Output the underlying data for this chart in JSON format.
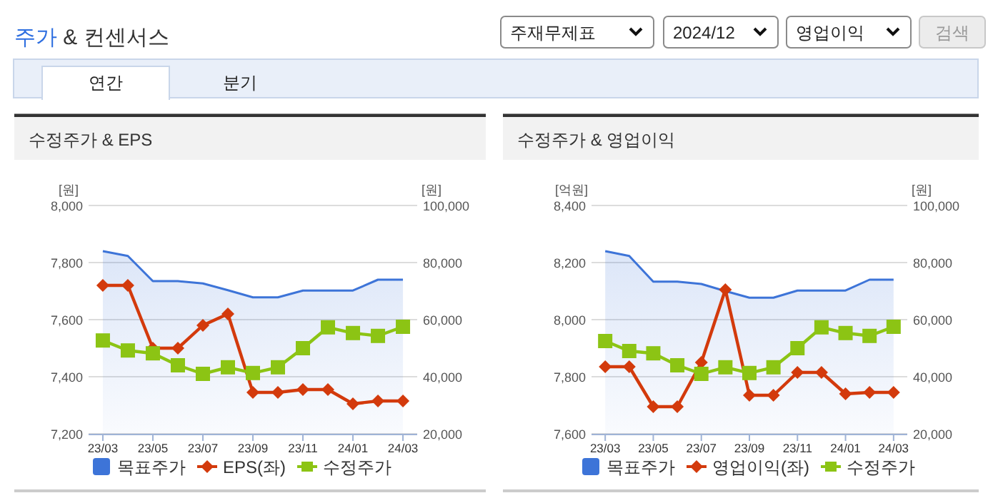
{
  "chart_data": [
    {
      "type": "other",
      "title": "주가 & 컨센서스",
      "annotations": [
        "주재무제표",
        "2024/12",
        "영업이익",
        "검색",
        "연간",
        "분기"
      ]
    },
    {
      "type": "line",
      "title": "수정주가 & EPS",
      "ylabel": "[원]",
      "y2label": "[원]",
      "categories": [
        "23/03",
        null,
        "23/05",
        null,
        "23/07",
        null,
        "23/09",
        null,
        "23/11",
        null,
        "24/01",
        null,
        "24/03"
      ],
      "series": [
        {
          "name": "목표주가",
          "type": "area",
          "axis": "y2",
          "color": "#3d74d8",
          "values": [
            84000,
            82300,
            73500,
            73500,
            72700,
            70300,
            67800,
            67800,
            70200,
            70200,
            70200,
            74000,
            74000
          ]
        },
        {
          "name": "EPS(좌)",
          "type": "line",
          "marker": "diamond",
          "color": "#d33a0c",
          "values": [
            7720,
            7720,
            7500,
            7500,
            7580,
            7620,
            7345,
            7345,
            7355,
            7355,
            7305,
            7315,
            7315
          ]
        },
        {
          "name": "수정주가",
          "type": "line",
          "axis": "y2",
          "marker": "square",
          "color": "#8cc414",
          "values": [
            52700,
            49200,
            48200,
            44000,
            41000,
            43300,
            41300,
            43300,
            50000,
            57300,
            55300,
            54300,
            57500
          ]
        }
      ],
      "ylim": [
        7200,
        8000
      ],
      "yticks": [
        {
          "value": 7200,
          "label": "7,200"
        },
        {
          "value": 7400,
          "label": "7,400"
        },
        {
          "value": 7600,
          "label": "7,600"
        },
        {
          "value": 7800,
          "label": "7,800"
        },
        {
          "value": 8000,
          "label": "8,000"
        }
      ],
      "y2lim": [
        20000,
        100000
      ],
      "y2ticks": [
        {
          "value": 20000,
          "label": "20,000"
        },
        {
          "value": 40000,
          "label": "40,000"
        },
        {
          "value": 60000,
          "label": "60,000"
        },
        {
          "value": 80000,
          "label": "80,000"
        },
        {
          "value": 100000,
          "label": "100,000"
        }
      ],
      "grid": "y",
      "legend": "bottom"
    },
    {
      "type": "line",
      "title": "수정주가 & 영업이익",
      "ylabel": "[억원]",
      "y2label": "[원]",
      "categories": [
        "23/03",
        null,
        "23/05",
        null,
        "23/07",
        null,
        "23/09",
        null,
        "23/11",
        null,
        "24/01",
        null,
        "24/03"
      ],
      "series": [
        {
          "name": "목표주가",
          "type": "area",
          "axis": "y2",
          "color": "#3d74d8",
          "values": [
            84000,
            82300,
            73300,
            73300,
            72500,
            70000,
            67700,
            67700,
            70200,
            70200,
            70200,
            74000,
            74000
          ]
        },
        {
          "name": "영업이익(좌)",
          "type": "line",
          "marker": "diamond",
          "color": "#d33a0c",
          "values": [
            7835,
            7835,
            7695,
            7695,
            7850,
            8105,
            7735,
            7735,
            7815,
            7815,
            7740,
            7745,
            7745
          ]
        },
        {
          "name": "수정주가",
          "type": "line",
          "axis": "y2",
          "marker": "square",
          "color": "#8cc414",
          "values": [
            52500,
            49000,
            48200,
            44000,
            41000,
            43300,
            41300,
            43300,
            50000,
            57300,
            55300,
            54300,
            57500
          ]
        }
      ],
      "ylim": [
        7600,
        8400
      ],
      "yticks": [
        {
          "value": 7600,
          "label": "7,600"
        },
        {
          "value": 7800,
          "label": "7,800"
        },
        {
          "value": 8000,
          "label": "8,000"
        },
        {
          "value": 8200,
          "label": "8,200"
        },
        {
          "value": 8400,
          "label": "8,400"
        }
      ],
      "y2lim": [
        20000,
        100000
      ],
      "y2ticks": [
        {
          "value": 20000,
          "label": "20,000"
        },
        {
          "value": 40000,
          "label": "40,000"
        },
        {
          "value": 60000,
          "label": "60,000"
        },
        {
          "value": 80000,
          "label": "80,000"
        },
        {
          "value": 100000,
          "label": "100,000"
        }
      ],
      "grid": "y",
      "legend": "bottom"
    }
  ]
}
